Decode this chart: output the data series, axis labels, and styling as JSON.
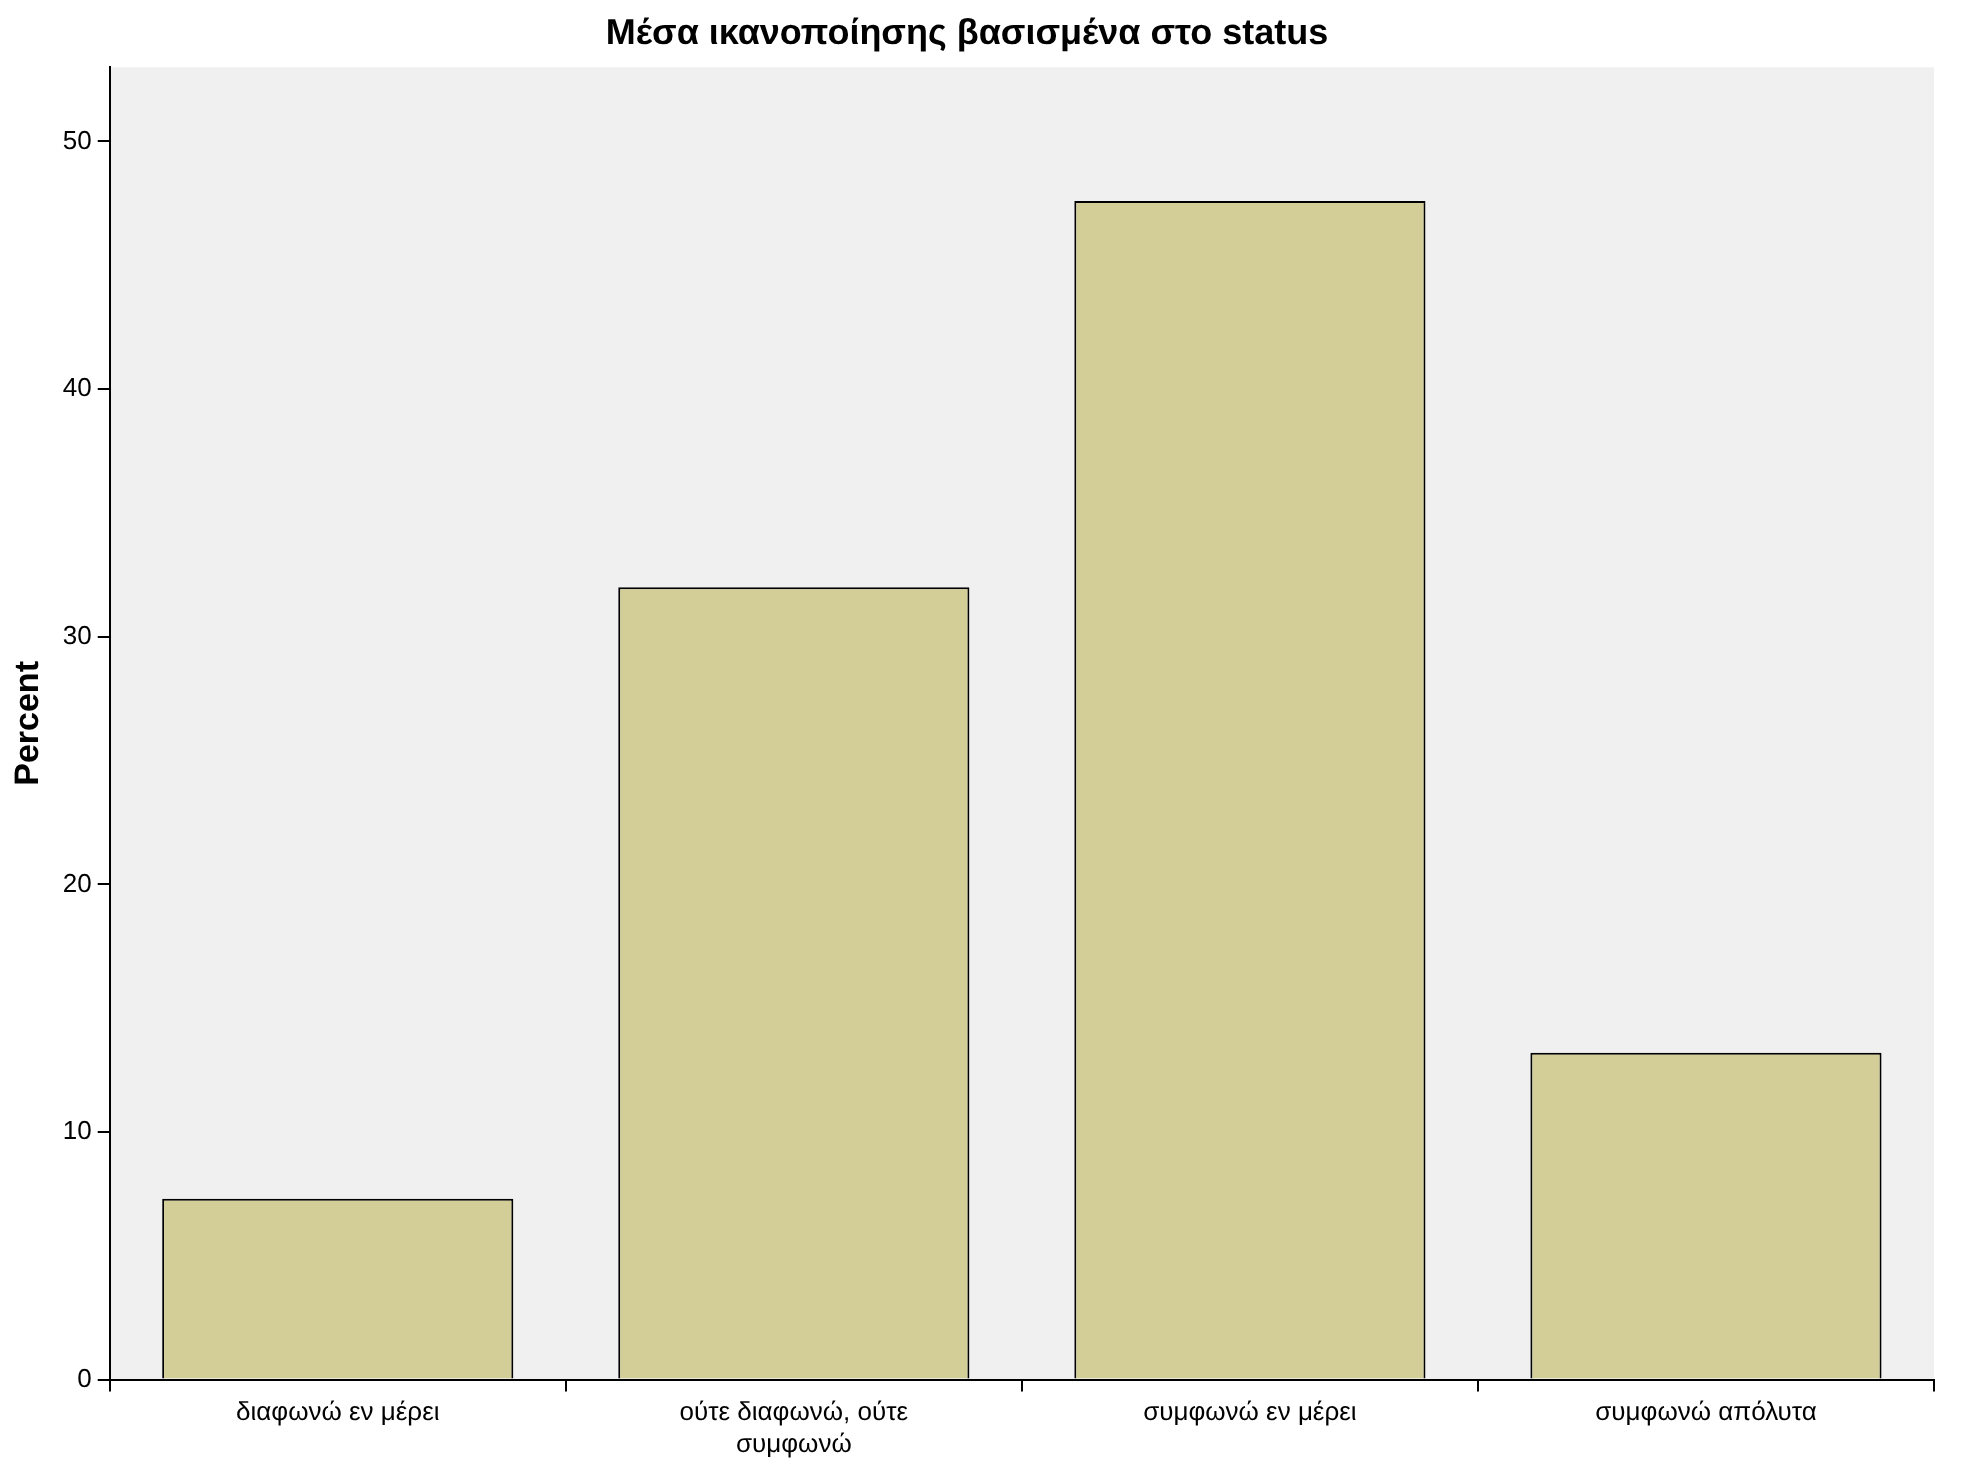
{
  "chart_data": {
    "type": "bar",
    "title": "Μέσα ικανοποίησης βασισμένα στο status",
    "ylabel": "Percent",
    "categories": [
      "διαφωνώ εν μέρει",
      "ούτε διαφωνώ, ούτε συμφωνώ",
      "συμφωνώ εν μέρει",
      "συμφωνώ απόλυτα"
    ],
    "values": [
      7.3,
      32.0,
      47.6,
      13.2
    ],
    "color": "#d3ce97",
    "ylim": [
      0,
      53
    ],
    "yticks": [
      0,
      10,
      20,
      30,
      40,
      50
    ],
    "grid": false,
    "legend": false
  }
}
